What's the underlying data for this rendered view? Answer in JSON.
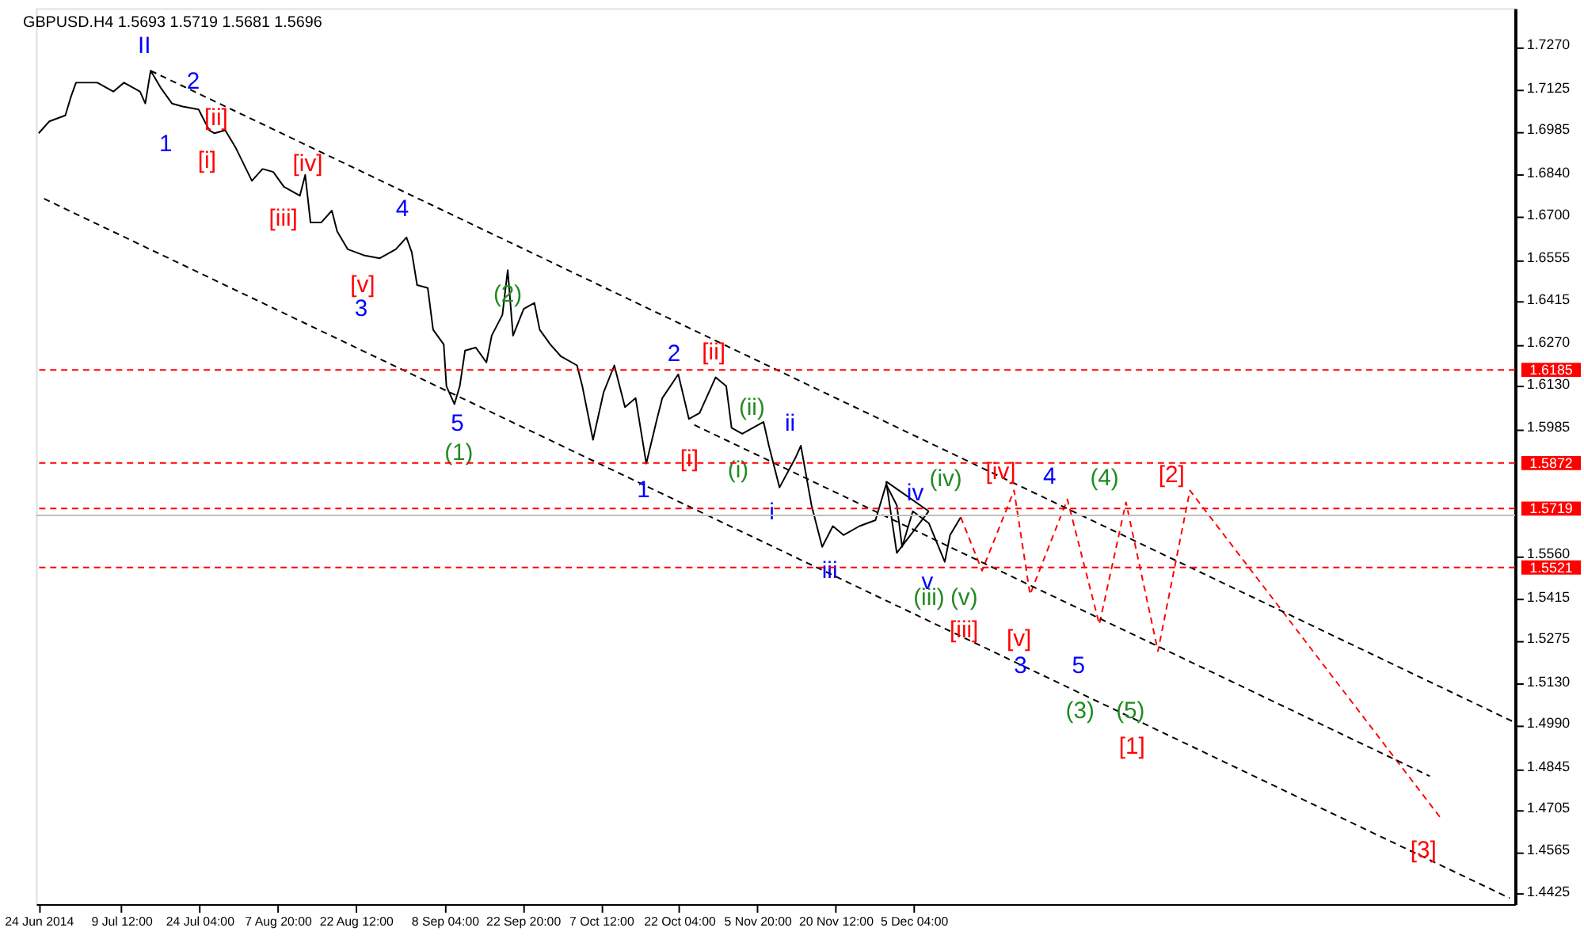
{
  "chart_data": {
    "type": "line",
    "title": "GBPUSD.H4  1.5693 1.5719 1.5681 1.5696",
    "xlim": [
      "2014-06-23T12:00",
      "2015-03-28"
    ],
    "xticks": [
      {
        "value": "2014-06-24",
        "label": "24 Jun 2014"
      },
      {
        "value": "2014-07-09T12:00",
        "label": "9 Jul 12:00"
      },
      {
        "value": "2014-07-24T04:00",
        "label": "24 Jul 04:00"
      },
      {
        "value": "2014-08-07T20:00",
        "label": "7 Aug 20:00"
      },
      {
        "value": "2014-08-22T12:00",
        "label": "22 Aug 12:00"
      },
      {
        "value": "2014-09-08T04:00",
        "label": "8 Sep 04:00"
      },
      {
        "value": "2014-09-22T20:00",
        "label": "22 Sep 20:00"
      },
      {
        "value": "2014-10-07T12:00",
        "label": "7 Oct 12:00"
      },
      {
        "value": "2014-10-22T04:00",
        "label": "22 Oct 04:00"
      },
      {
        "value": "2014-11-05T20:00",
        "label": "5 Nov 20:00"
      },
      {
        "value": "2014-11-20T12:00",
        "label": "20 Nov 12:00"
      },
      {
        "value": "2014-12-05T04:00",
        "label": "5 Dec 04:00"
      }
    ],
    "ylim": [
      1.439,
      1.74
    ],
    "yticks": [
      {
        "value": 1.727,
        "label": "1.7270"
      },
      {
        "value": 1.7125,
        "label": "1.7125"
      },
      {
        "value": 1.6985,
        "label": "1.6985"
      },
      {
        "value": 1.684,
        "label": "1.6840"
      },
      {
        "value": 1.67,
        "label": "1.6700"
      },
      {
        "value": 1.6555,
        "label": "1.6555"
      },
      {
        "value": 1.6415,
        "label": "1.6415"
      },
      {
        "value": 1.627,
        "label": "1.6270"
      },
      {
        "value": 1.613,
        "label": "1.6130"
      },
      {
        "value": 1.5985,
        "label": "1.5985"
      },
      {
        "value": 1.556,
        "label": "1.5560"
      },
      {
        "value": 1.5415,
        "label": "1.5415"
      },
      {
        "value": 1.5275,
        "label": "1.5275"
      },
      {
        "value": 1.513,
        "label": "1.5130"
      },
      {
        "value": 1.499,
        "label": "1.4990"
      },
      {
        "value": 1.4845,
        "label": "1.4845"
      },
      {
        "value": 1.4705,
        "label": "1.4705"
      },
      {
        "value": 1.4565,
        "label": "1.4565"
      },
      {
        "value": 1.4425,
        "label": "1.4425"
      }
    ],
    "annotations": [
      "II",
      "2",
      "1",
      "4",
      "3",
      "5",
      "1",
      "2",
      "ii",
      "i",
      "iii",
      "iv",
      "v",
      "4",
      "3",
      "5",
      "[ii]",
      "[i]",
      "[iv]",
      "[iii]",
      "[v]",
      "[ii]",
      "[i]",
      "[iv]",
      "[iii]",
      "[v]",
      "[2]",
      "[1]",
      "[3]",
      "(2)",
      "(1)",
      "(ii)",
      "(i)",
      "(iv)",
      "(iii)",
      "(v)",
      "(4)",
      "(3)",
      "(5)"
    ],
    "ref_lines": [
      {
        "axis": "y",
        "value": 1.6185,
        "label": "1.6185",
        "color": "#ff0000",
        "line_style": "dashed"
      },
      {
        "axis": "y",
        "value": 1.5872,
        "label": "1.5872",
        "color": "#ff0000",
        "line_style": "dashed"
      },
      {
        "axis": "y",
        "value": 1.5696,
        "label": null,
        "color": "#c0c0c0",
        "line_style": "solid"
      },
      {
        "axis": "y",
        "value": 1.5719,
        "label": "1.5719",
        "color": "#ff0000",
        "line_style": "dashed"
      },
      {
        "axis": "y",
        "value": 1.5521,
        "label": "1.5521",
        "color": "#ff0000",
        "line_style": "dashed"
      }
    ],
    "series": [
      {
        "type": "line",
        "color": "#000000",
        "line_style": "solid",
        "x": [
          "2014-06-24",
          "2014-06-26",
          "2014-06-29",
          "2014-06-30",
          "2014-07-01",
          "2014-07-05",
          "2014-07-08",
          "2014-07-10",
          "2014-07-13",
          "2014-07-14",
          "2014-07-15",
          "2014-07-17",
          "2014-07-19",
          "2014-07-21",
          "2014-07-24",
          "2014-07-26",
          "2014-07-27",
          "2014-07-29",
          "2014-07-31",
          "2014-08-03",
          "2014-08-05",
          "2014-08-07",
          "2014-08-09",
          "2014-08-12",
          "2014-08-13",
          "2014-08-14",
          "2014-08-16",
          "2014-08-18",
          "2014-08-19",
          "2014-08-21",
          "2014-08-24",
          "2014-08-27",
          "2014-08-30",
          "2014-09-01",
          "2014-09-02",
          "2014-09-03",
          "2014-09-05",
          "2014-09-06",
          "2014-09-08",
          "2014-09-08T12:00",
          "2014-09-10",
          "2014-09-11",
          "2014-09-12",
          "2014-09-14",
          "2014-09-16",
          "2014-09-17",
          "2014-09-19",
          "2014-09-20",
          "2014-09-21",
          "2014-09-23",
          "2014-09-25",
          "2014-09-26",
          "2014-09-28",
          "2014-09-30",
          "2014-10-03",
          "2014-10-04",
          "2014-10-06",
          "2014-10-08",
          "2014-10-10",
          "2014-10-12",
          "2014-10-14",
          "2014-10-16",
          "2014-10-18",
          "2014-10-19",
          "2014-10-22",
          "2014-10-24",
          "2014-10-26",
          "2014-10-29",
          "2014-10-31",
          "2014-11-01",
          "2014-11-03",
          "2014-11-07",
          "2014-11-08",
          "2014-11-10",
          "2014-11-13",
          "2014-11-14",
          "2014-11-15",
          "2014-11-16",
          "2014-11-18",
          "2014-11-20",
          "2014-11-22",
          "2014-11-25",
          "2014-11-28",
          "2014-11-30",
          "2014-12-02",
          "2014-12-03",
          "2014-12-05",
          "2014-12-08",
          "2014-12-11",
          "2014-12-12",
          "2014-12-14"
        ],
        "values": [
          1.698,
          1.702,
          1.704,
          1.71,
          1.715,
          1.715,
          1.712,
          1.715,
          1.712,
          1.708,
          1.719,
          1.713,
          1.708,
          1.707,
          1.706,
          1.699,
          1.698,
          1.699,
          1.693,
          1.682,
          1.686,
          1.685,
          1.68,
          1.677,
          1.684,
          1.668,
          1.668,
          1.672,
          1.665,
          1.659,
          1.657,
          1.656,
          1.659,
          1.663,
          1.658,
          1.647,
          1.646,
          1.632,
          1.627,
          1.613,
          1.607,
          1.613,
          1.625,
          1.626,
          1.621,
          1.63,
          1.637,
          1.652,
          1.63,
          1.639,
          1.641,
          1.632,
          1.627,
          1.623,
          1.62,
          1.613,
          1.595,
          1.611,
          1.62,
          1.606,
          1.609,
          1.587,
          1.602,
          1.609,
          1.617,
          1.602,
          1.604,
          1.616,
          1.613,
          1.599,
          1.597,
          1.601,
          1.593,
          1.579,
          1.589,
          1.593,
          1.583,
          1.573,
          1.559,
          1.566,
          1.563,
          1.566,
          1.568,
          1.58,
          1.573,
          1.559,
          1.571,
          1.567,
          1.554,
          1.563,
          1.569
        ]
      },
      {
        "type": "line",
        "color": "#ff0000",
        "line_style": "dashed",
        "x": [
          "2014-12-14",
          "2014-12-18",
          "2014-12-24",
          "2014-12-27",
          "2015-01-03",
          "2015-01-09",
          "2015-01-14",
          "2015-01-20",
          "2015-01-26",
          "2015-03-14"
        ],
        "values": [
          1.569,
          1.551,
          1.578,
          1.543,
          1.575,
          1.533,
          1.574,
          1.524,
          1.578,
          1.468
        ]
      },
      {
        "type": "line",
        "color": "#000000",
        "line_style": "dashed",
        "x": [
          "2014-07-15",
          "2015-03-28"
        ],
        "values": [
          1.719,
          1.5
        ]
      },
      {
        "type": "line",
        "color": "#000000",
        "line_style": "dashed",
        "x": [
          "2014-10-25",
          "2015-03-12"
        ],
        "values": [
          1.6,
          1.482
        ]
      },
      {
        "type": "line",
        "color": "#000000",
        "line_style": "dashed",
        "x": [
          "2014-06-25",
          "2015-03-27"
        ],
        "values": [
          1.676,
          1.441
        ]
      },
      {
        "type": "line",
        "color": "#000000",
        "line_style": "solid",
        "x": [
          "2014-11-30",
          "2014-12-08"
        ],
        "values": [
          1.581,
          1.571
        ]
      },
      {
        "type": "line",
        "color": "#000000",
        "line_style": "solid",
        "x": [
          "2014-11-30",
          "2014-12-02",
          "2014-12-08"
        ],
        "values": [
          1.581,
          1.557,
          1.571
        ]
      }
    ]
  }
}
